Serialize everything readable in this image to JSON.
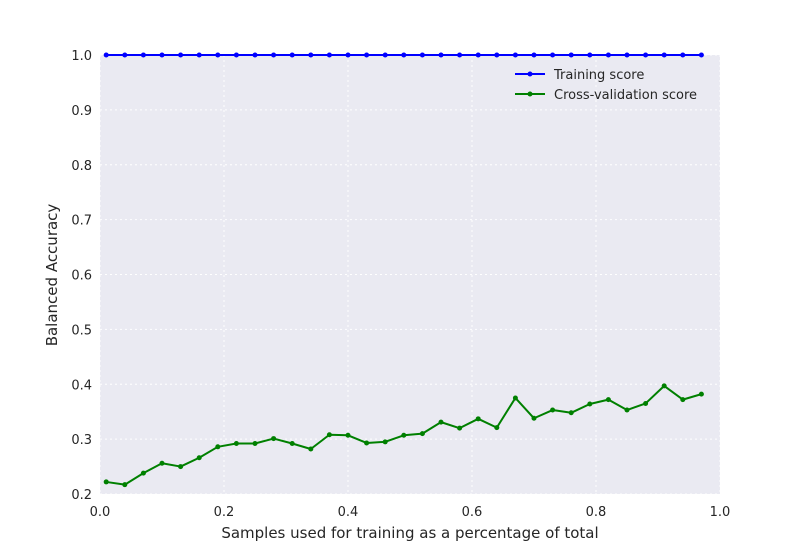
{
  "chart_data": {
    "type": "line",
    "title": "",
    "xlabel": "Samples used for training as a percentage of total",
    "ylabel": "Balanced Accuracy",
    "xlim": [
      0.0,
      1.0
    ],
    "ylim": [
      0.2,
      1.0
    ],
    "xticks": [
      "0.0",
      "0.2",
      "0.4",
      "0.6",
      "0.8",
      "1.0"
    ],
    "yticks": [
      "0.2",
      "0.3",
      "0.4",
      "0.5",
      "0.6",
      "0.7",
      "0.8",
      "0.9",
      "1.0"
    ],
    "grid": true,
    "legend_position": "top-right",
    "x": [
      0.01,
      0.04,
      0.07,
      0.1,
      0.13,
      0.16,
      0.19,
      0.22,
      0.25,
      0.28,
      0.31,
      0.34,
      0.37,
      0.4,
      0.43,
      0.46,
      0.49,
      0.52,
      0.55,
      0.58,
      0.61,
      0.64,
      0.67,
      0.7,
      0.73,
      0.76,
      0.79,
      0.82,
      0.85,
      0.88,
      0.91,
      0.94,
      0.97
    ],
    "series": [
      {
        "name": "Training score",
        "color": "#0000ff",
        "values": [
          1.0,
          1.0,
          1.0,
          1.0,
          1.0,
          1.0,
          1.0,
          1.0,
          1.0,
          1.0,
          1.0,
          1.0,
          1.0,
          1.0,
          1.0,
          1.0,
          1.0,
          1.0,
          1.0,
          1.0,
          1.0,
          1.0,
          1.0,
          1.0,
          1.0,
          1.0,
          1.0,
          1.0,
          1.0,
          1.0,
          1.0,
          1.0,
          1.0
        ]
      },
      {
        "name": "Cross-validation score",
        "color": "#008000",
        "values": [
          0.222,
          0.217,
          0.238,
          0.256,
          0.25,
          0.266,
          0.286,
          0.292,
          0.292,
          0.301,
          0.292,
          0.282,
          0.308,
          0.307,
          0.293,
          0.295,
          0.307,
          0.31,
          0.331,
          0.32,
          0.337,
          0.321,
          0.375,
          0.338,
          0.353,
          0.348,
          0.364,
          0.372,
          0.353,
          0.365,
          0.397,
          0.372,
          0.382
        ]
      }
    ]
  }
}
